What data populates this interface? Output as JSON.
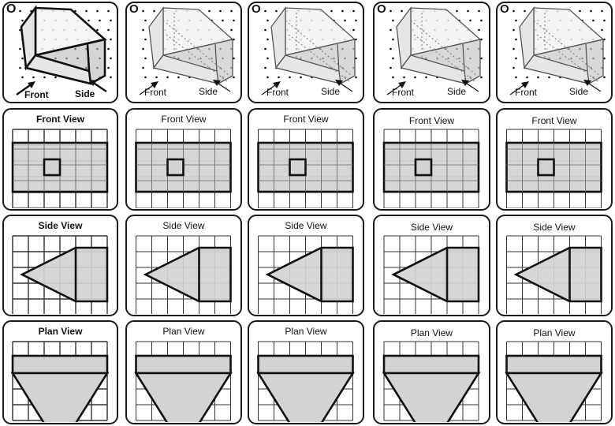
{
  "origin_label": "O",
  "front_arrow_label": "Front",
  "side_arrow_label": "Side",
  "titles": {
    "front": "Front View",
    "side": "Side View",
    "plan": "Plan View"
  },
  "columns": 5,
  "colors": {
    "border": "#1a1a1a",
    "fill": "#d3d3d3",
    "grid": "#444444"
  }
}
